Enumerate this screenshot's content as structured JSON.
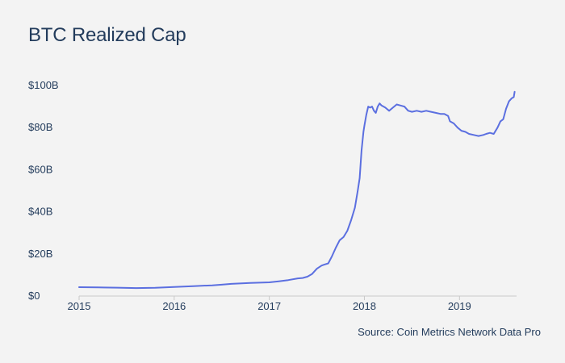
{
  "chart_data": {
    "type": "line",
    "title": "BTC Realized Cap",
    "source": "Source: Coin Metrics Network Data Pro",
    "xlabel": "",
    "ylabel": "",
    "ylim": [
      0,
      100
    ],
    "xlim": [
      2015.0,
      2019.6
    ],
    "y_ticks": [
      {
        "value": 0,
        "label": "$0"
      },
      {
        "value": 20,
        "label": "$20B"
      },
      {
        "value": 40,
        "label": "$40B"
      },
      {
        "value": 60,
        "label": "$60B"
      },
      {
        "value": 80,
        "label": "$80B"
      },
      {
        "value": 100,
        "label": "$100B"
      }
    ],
    "x_ticks": [
      {
        "value": 2015,
        "label": "2015"
      },
      {
        "value": 2016,
        "label": "2016"
      },
      {
        "value": 2017,
        "label": "2017"
      },
      {
        "value": 2018,
        "label": "2018"
      },
      {
        "value": 2019,
        "label": "2019"
      }
    ],
    "grid": false,
    "line_color": "#5b6fe0",
    "series": [
      {
        "name": "",
        "x": [
          2015.0,
          2015.2,
          2015.4,
          2015.6,
          2015.8,
          2016.0,
          2016.2,
          2016.4,
          2016.5,
          2016.6,
          2016.8,
          2017.0,
          2017.1,
          2017.2,
          2017.3,
          2017.35,
          2017.4,
          2017.45,
          2017.5,
          2017.55,
          2017.58,
          2017.62,
          2017.66,
          2017.7,
          2017.74,
          2017.78,
          2017.82,
          2017.86,
          2017.9,
          2017.93,
          2017.95,
          2017.97,
          2017.99,
          2018.0,
          2018.02,
          2018.04,
          2018.06,
          2018.08,
          2018.1,
          2018.12,
          2018.14,
          2018.16,
          2018.18,
          2018.22,
          2018.26,
          2018.3,
          2018.34,
          2018.38,
          2018.42,
          2018.46,
          2018.5,
          2018.55,
          2018.6,
          2018.65,
          2018.7,
          2018.75,
          2018.8,
          2018.84,
          2018.88,
          2018.9,
          2018.94,
          2018.98,
          2019.02,
          2019.06,
          2019.1,
          2019.15,
          2019.2,
          2019.25,
          2019.28,
          2019.32,
          2019.36,
          2019.4,
          2019.43,
          2019.46,
          2019.49,
          2019.52,
          2019.55,
          2019.57,
          2019.58
        ],
        "values": [
          4.2,
          4.1,
          4.0,
          3.8,
          3.9,
          4.3,
          4.7,
          5.1,
          5.4,
          5.8,
          6.2,
          6.5,
          7.0,
          7.6,
          8.4,
          8.6,
          9.2,
          10.5,
          13.0,
          14.5,
          15.0,
          15.5,
          19.0,
          23.0,
          26.5,
          28.0,
          31.0,
          36.0,
          42.0,
          50.0,
          56.0,
          69.0,
          78.0,
          81.0,
          86.0,
          90.0,
          89.5,
          90.0,
          88.0,
          87.0,
          90.0,
          91.5,
          90.5,
          89.5,
          88.0,
          89.5,
          91.0,
          90.5,
          90.0,
          88.0,
          87.5,
          88.0,
          87.5,
          88.0,
          87.5,
          87.0,
          86.5,
          86.5,
          85.5,
          83.0,
          82.0,
          80.0,
          78.5,
          78.0,
          77.0,
          76.5,
          76.0,
          76.5,
          77.0,
          77.5,
          77.0,
          80.0,
          83.0,
          84.0,
          89.0,
          92.5,
          94.0,
          94.5,
          97.0
        ]
      }
    ]
  }
}
